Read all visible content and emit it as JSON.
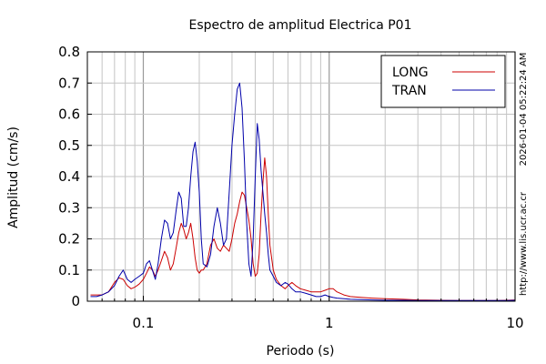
{
  "chart_data": {
    "type": "line",
    "title": "Espectro de amplitud Electrica P01",
    "xlabel": "Periodo (s)",
    "ylabel": "Amplitud (cm/s)",
    "xscale": "log",
    "xlim": [
      0.05,
      10
    ],
    "ylim": [
      0,
      0.8
    ],
    "x_ticks": [
      0.1,
      1,
      10
    ],
    "x_tick_labels": [
      "0.1",
      "1",
      "10"
    ],
    "y_ticks": [
      0,
      0.1,
      0.2,
      0.3,
      0.4,
      0.5,
      0.6,
      0.7,
      0.8
    ],
    "y_tick_labels": [
      "0",
      "0.1",
      "0.2",
      "0.3",
      "0.4",
      "0.5",
      "0.6",
      "0.7",
      "0.8"
    ],
    "grid": true,
    "legend_position": "top-right",
    "side_text": [
      "2026-01-04 05:22:24 AM",
      "http://www.lis.ucr.ac.cr"
    ],
    "series": [
      {
        "name": "LONG",
        "color": "#cc0000",
        "x": [
          0.052,
          0.056,
          0.06,
          0.065,
          0.07,
          0.074,
          0.078,
          0.082,
          0.086,
          0.09,
          0.095,
          0.1,
          0.104,
          0.108,
          0.112,
          0.116,
          0.12,
          0.125,
          0.13,
          0.135,
          0.14,
          0.145,
          0.15,
          0.155,
          0.16,
          0.165,
          0.17,
          0.175,
          0.18,
          0.185,
          0.19,
          0.195,
          0.2,
          0.205,
          0.21,
          0.22,
          0.23,
          0.24,
          0.25,
          0.26,
          0.27,
          0.28,
          0.29,
          0.3,
          0.31,
          0.32,
          0.33,
          0.34,
          0.35,
          0.36,
          0.37,
          0.38,
          0.39,
          0.4,
          0.41,
          0.42,
          0.43,
          0.44,
          0.45,
          0.46,
          0.47,
          0.48,
          0.5,
          0.52,
          0.55,
          0.58,
          0.6,
          0.63,
          0.66,
          0.7,
          0.75,
          0.8,
          0.85,
          0.9,
          0.95,
          1.0,
          1.05,
          1.1,
          1.2,
          1.3,
          1.5,
          1.7,
          2.0,
          2.5,
          3.0,
          4.0,
          5.0,
          6.0,
          7.0,
          8.0,
          9.0,
          10.0
        ],
        "values": [
          0.02,
          0.02,
          0.02,
          0.03,
          0.06,
          0.075,
          0.07,
          0.05,
          0.04,
          0.045,
          0.055,
          0.07,
          0.09,
          0.11,
          0.1,
          0.08,
          0.1,
          0.13,
          0.16,
          0.14,
          0.1,
          0.12,
          0.17,
          0.22,
          0.25,
          0.23,
          0.2,
          0.22,
          0.25,
          0.2,
          0.14,
          0.1,
          0.09,
          0.1,
          0.1,
          0.12,
          0.18,
          0.2,
          0.17,
          0.16,
          0.18,
          0.17,
          0.16,
          0.2,
          0.25,
          0.28,
          0.32,
          0.35,
          0.34,
          0.3,
          0.26,
          0.2,
          0.12,
          0.08,
          0.09,
          0.15,
          0.28,
          0.38,
          0.46,
          0.4,
          0.28,
          0.18,
          0.1,
          0.07,
          0.05,
          0.04,
          0.05,
          0.06,
          0.05,
          0.04,
          0.035,
          0.03,
          0.03,
          0.03,
          0.035,
          0.04,
          0.04,
          0.03,
          0.02,
          0.015,
          0.012,
          0.01,
          0.008,
          0.006,
          0.004,
          0.003,
          0.002,
          0.002,
          0.002,
          0.002,
          0.003,
          0.004
        ]
      },
      {
        "name": "TRAN",
        "color": "#0000aa",
        "x": [
          0.052,
          0.056,
          0.06,
          0.065,
          0.07,
          0.074,
          0.078,
          0.082,
          0.086,
          0.09,
          0.095,
          0.1,
          0.104,
          0.108,
          0.112,
          0.116,
          0.12,
          0.125,
          0.13,
          0.135,
          0.14,
          0.145,
          0.15,
          0.155,
          0.16,
          0.165,
          0.17,
          0.175,
          0.18,
          0.185,
          0.19,
          0.195,
          0.2,
          0.205,
          0.21,
          0.22,
          0.23,
          0.24,
          0.25,
          0.26,
          0.27,
          0.28,
          0.29,
          0.3,
          0.31,
          0.32,
          0.33,
          0.34,
          0.35,
          0.36,
          0.37,
          0.38,
          0.39,
          0.4,
          0.41,
          0.42,
          0.43,
          0.44,
          0.45,
          0.46,
          0.47,
          0.48,
          0.5,
          0.52,
          0.55,
          0.58,
          0.6,
          0.63,
          0.66,
          0.7,
          0.75,
          0.8,
          0.85,
          0.9,
          0.95,
          1.0,
          1.05,
          1.1,
          1.2,
          1.3,
          1.5,
          1.7,
          2.0,
          2.5,
          3.0,
          4.0,
          5.0,
          6.0,
          7.0,
          8.0,
          9.0,
          10.0
        ],
        "values": [
          0.015,
          0.015,
          0.02,
          0.03,
          0.05,
          0.08,
          0.1,
          0.07,
          0.06,
          0.07,
          0.08,
          0.09,
          0.12,
          0.13,
          0.1,
          0.07,
          0.12,
          0.2,
          0.26,
          0.25,
          0.2,
          0.22,
          0.29,
          0.35,
          0.33,
          0.24,
          0.24,
          0.3,
          0.4,
          0.48,
          0.51,
          0.45,
          0.35,
          0.2,
          0.12,
          0.11,
          0.15,
          0.24,
          0.3,
          0.25,
          0.18,
          0.2,
          0.35,
          0.5,
          0.6,
          0.68,
          0.7,
          0.62,
          0.45,
          0.25,
          0.12,
          0.08,
          0.2,
          0.4,
          0.57,
          0.52,
          0.42,
          0.35,
          0.28,
          0.22,
          0.15,
          0.1,
          0.08,
          0.06,
          0.05,
          0.06,
          0.055,
          0.04,
          0.03,
          0.03,
          0.025,
          0.02,
          0.015,
          0.015,
          0.02,
          0.015,
          0.012,
          0.01,
          0.008,
          0.006,
          0.005,
          0.004,
          0.003,
          0.003,
          0.002,
          0.002,
          0.002,
          0.002,
          0.002,
          0.002,
          0.002,
          0.003
        ]
      }
    ]
  }
}
